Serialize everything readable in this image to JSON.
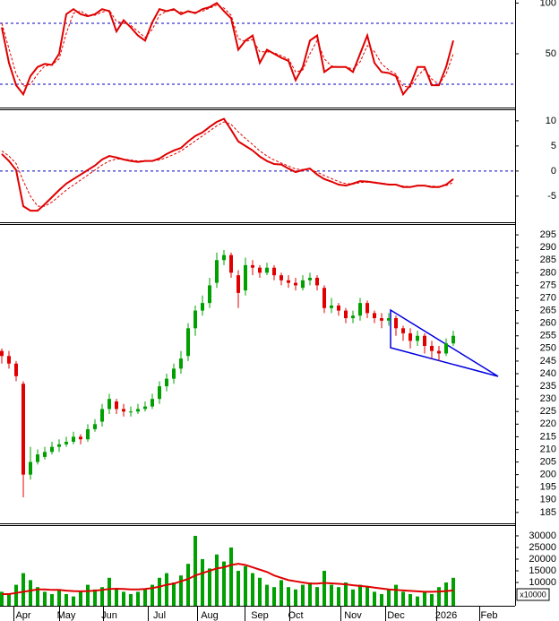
{
  "chart_data": [
    {
      "type": "line",
      "ylim": [
        -3,
        103
      ],
      "yticks": [
        50,
        100
      ],
      "levels": [
        80,
        20
      ],
      "level_color": "#0000c0",
      "series": [
        {
          "color": "#e00000",
          "values": [
            76,
            41,
            19,
            10,
            28,
            37,
            40,
            39,
            50,
            89,
            94,
            89,
            87,
            89,
            94,
            92,
            72,
            83,
            76,
            68,
            63,
            81,
            94,
            92,
            94,
            89,
            92,
            90,
            94,
            96,
            100,
            92,
            85,
            54,
            63,
            68,
            41,
            54,
            50,
            46,
            43,
            24,
            37,
            63,
            68,
            32,
            37,
            37,
            37,
            32,
            50,
            68,
            41,
            32,
            31,
            28,
            10,
            19,
            37,
            37,
            19,
            19,
            37,
            63,
            null,
            null,
            null,
            null,
            null
          ]
        },
        {
          "color": "#e00000",
          "style": "dashed",
          "values": [
            80,
            55,
            30,
            18,
            20,
            30,
            38,
            39,
            45,
            70,
            90,
            92,
            88,
            88,
            91,
            93,
            82,
            80,
            78,
            72,
            66,
            74,
            88,
            92,
            93,
            91,
            91,
            91,
            92,
            95,
            98,
            95,
            88,
            65,
            62,
            64,
            52,
            52,
            51,
            48,
            45,
            32,
            34,
            50,
            63,
            45,
            38,
            37,
            37,
            35,
            42,
            58,
            52,
            40,
            34,
            30,
            18,
            17,
            28,
            35,
            25,
            20,
            30,
            50,
            null,
            null,
            null,
            null,
            null
          ]
        }
      ]
    },
    {
      "type": "line",
      "ylim": [
        -10.2,
        12.3
      ],
      "yticks": [
        -5,
        0,
        5,
        10
      ],
      "levels": [
        0
      ],
      "level_color": "#0000c0",
      "series": [
        {
          "color": "#e00000",
          "values": [
            3.4,
            2,
            0.2,
            -7,
            -7.9,
            -7.9,
            -6.6,
            -5.2,
            -3.8,
            -2.5,
            -1.6,
            -0.7,
            0.2,
            1.1,
            2.3,
            3,
            2.7,
            2.3,
            2,
            1.8,
            2,
            2,
            2.5,
            3.4,
            4.1,
            4.6,
            5.9,
            7,
            7.7,
            8.8,
            9.8,
            10.4,
            8.2,
            5.9,
            5,
            4.1,
            2.9,
            2,
            1.4,
            1.3,
            0.5,
            -0.2,
            0.2,
            0.5,
            -0.7,
            -1.6,
            -2.1,
            -2.7,
            -2.9,
            -2.5,
            -2,
            -2.1,
            -2.3,
            -2.5,
            -2.7,
            -2.7,
            -3.2,
            -3.2,
            -2.9,
            -2.9,
            -3.2,
            -3.2,
            -2.7,
            -1.6,
            null,
            null,
            null,
            null,
            null
          ]
        },
        {
          "color": "#e00000",
          "style": "dashed",
          "values": [
            4,
            3,
            1.5,
            -2,
            -5,
            -7,
            -7,
            -6.2,
            -5,
            -3.8,
            -2.8,
            -1.8,
            -0.8,
            0.2,
            1.2,
            2,
            2.4,
            2.4,
            2.2,
            2,
            2,
            2,
            2.2,
            2.7,
            3.3,
            4,
            5,
            6,
            7,
            8,
            9,
            9.8,
            9.3,
            7.8,
            6.5,
            5.3,
            4,
            3,
            2.2,
            1.6,
            1,
            0.4,
            0.3,
            0.3,
            -0.2,
            -0.9,
            -1.5,
            -2.1,
            -2.5,
            -2.6,
            -2.3,
            -2.2,
            -2.2,
            -2.4,
            -2.6,
            -2.7,
            -3,
            -3.1,
            -3,
            -2.9,
            -3,
            -3.1,
            -2.9,
            -2.3,
            null,
            null,
            null,
            null,
            null
          ]
        }
      ]
    },
    {
      "type": "candlestick",
      "ylim": [
        180.7,
        299.3
      ],
      "yticks": [
        185,
        190,
        195,
        200,
        205,
        210,
        215,
        220,
        225,
        230,
        235,
        240,
        245,
        250,
        255,
        260,
        265,
        270,
        275,
        280,
        285,
        290,
        295
      ],
      "up_color": "#00a000",
      "down_color": "#e00000",
      "open": [
        249,
        247,
        244,
        236,
        200,
        205,
        207,
        209,
        211,
        212,
        213,
        215,
        214,
        218,
        221,
        226,
        229,
        226,
        225,
        225,
        226,
        227,
        230,
        235,
        238,
        242,
        247,
        258,
        265,
        268,
        276,
        285,
        287,
        279,
        273,
        283,
        282,
        280,
        282,
        279,
        277,
        276,
        274,
        277,
        278,
        274,
        266,
        267,
        265,
        262,
        263,
        268,
        264,
        262,
        261,
        262,
        258,
        256,
        253,
        255,
        251,
        249,
        248,
        252,
        null,
        null,
        null,
        null,
        null
      ],
      "high": [
        250,
        249,
        245,
        237,
        211,
        210,
        211,
        213,
        214,
        215,
        217,
        216,
        220,
        222,
        228,
        232,
        230,
        228,
        227,
        228,
        229,
        232,
        237,
        240,
        244,
        249,
        260,
        267,
        271,
        278,
        288,
        289,
        288,
        281,
        286,
        285,
        283,
        284,
        283,
        280,
        279,
        278,
        279,
        280,
        279,
        275,
        270,
        268,
        266,
        265,
        270,
        269,
        265,
        264,
        264,
        263,
        259,
        258,
        257,
        256,
        253,
        251,
        254,
        257,
        null,
        null,
        null,
        null,
        null
      ],
      "low": [
        244,
        242,
        237,
        191,
        198,
        204,
        206,
        208,
        209,
        211,
        212,
        212,
        213,
        217,
        219,
        224,
        224,
        223,
        223,
        224,
        225,
        226,
        228,
        233,
        236,
        240,
        245,
        255,
        263,
        266,
        274,
        283,
        278,
        266,
        271,
        279,
        278,
        279,
        277,
        275,
        274,
        273,
        273,
        275,
        273,
        264,
        264,
        263,
        260,
        260,
        261,
        262,
        260,
        258,
        259,
        255,
        253,
        250,
        251,
        248,
        246,
        245,
        247,
        251,
        null,
        null,
        null,
        null,
        null
      ],
      "close": [
        247,
        244,
        239,
        200,
        205,
        208,
        209,
        211,
        212,
        213,
        215,
        214,
        218,
        220,
        226,
        230,
        226,
        225,
        225,
        226,
        227,
        230,
        235,
        238,
        242,
        246,
        258,
        265,
        268,
        275,
        285,
        287,
        280,
        272,
        283,
        282,
        280,
        282,
        279,
        277,
        276,
        275,
        277,
        278,
        275,
        266,
        267,
        265,
        262,
        263,
        268,
        264,
        262,
        261,
        262,
        258,
        256,
        253,
        255,
        251,
        249,
        248,
        252,
        255,
        null,
        null,
        null,
        null,
        null
      ]
    },
    {
      "type": "bar",
      "ylim": [
        0,
        34600
      ],
      "yticks": [
        10000,
        15000,
        20000,
        25000,
        30000
      ],
      "unit_label": "x10000",
      "categories": [
        null,
        null,
        null,
        "Apr",
        null,
        null,
        null,
        null,
        null,
        "May",
        null,
        null,
        null,
        null,
        null,
        "Jun",
        null,
        null,
        null,
        null,
        null,
        null,
        "Jul",
        null,
        null,
        null,
        null,
        null,
        null,
        "Aug",
        null,
        null,
        null,
        null,
        null,
        null,
        "Sep",
        null,
        null,
        null,
        null,
        "Oct",
        null,
        null,
        null,
        null,
        null,
        null,
        null,
        "Nov",
        null,
        null,
        null,
        null,
        null,
        "Dec",
        null,
        null,
        null,
        null,
        null,
        null,
        "2026",
        null,
        null,
        null,
        null,
        null,
        "Feb"
      ],
      "series": [
        {
          "type": "bar",
          "color": "#00a000",
          "values": [
            6000,
            5000,
            9000,
            14000,
            11000,
            8000,
            6000,
            5000,
            7000,
            5000,
            4000,
            6000,
            9000,
            7000,
            8000,
            12000,
            7000,
            6000,
            5000,
            6000,
            7000,
            9000,
            12000,
            14000,
            10000,
            13000,
            18000,
            30000,
            20000,
            16000,
            22000,
            19000,
            25000,
            15000,
            17000,
            14000,
            12000,
            9000,
            8000,
            11000,
            8000,
            7000,
            9000,
            10000,
            8000,
            15000,
            9000,
            8000,
            10000,
            7000,
            9000,
            8000,
            6000,
            5000,
            7000,
            9000,
            6000,
            5000,
            4000,
            6000,
            5000,
            8000,
            10000,
            12000,
            null,
            null,
            null,
            null,
            null
          ]
        },
        {
          "type": "line",
          "color": "#e00000",
          "values": [
            5000,
            5000,
            5500,
            6000,
            6500,
            7000,
            7000,
            6800,
            6800,
            6500,
            6300,
            6200,
            6300,
            6500,
            6800,
            7200,
            7300,
            7200,
            7000,
            7000,
            7200,
            7600,
            8200,
            9000,
            9500,
            10500,
            11500,
            13000,
            14000,
            15000,
            16000,
            16500,
            17500,
            18000,
            17500,
            16500,
            15500,
            14500,
            13000,
            12000,
            11000,
            10500,
            10000,
            9500,
            9500,
            9800,
            9600,
            9400,
            9200,
            8800,
            8500,
            8200,
            7800,
            7400,
            7000,
            6800,
            6600,
            6400,
            6200,
            6000,
            6000,
            6100,
            6300,
            6600,
            null,
            null,
            null,
            null,
            null
          ]
        }
      ]
    }
  ]
}
